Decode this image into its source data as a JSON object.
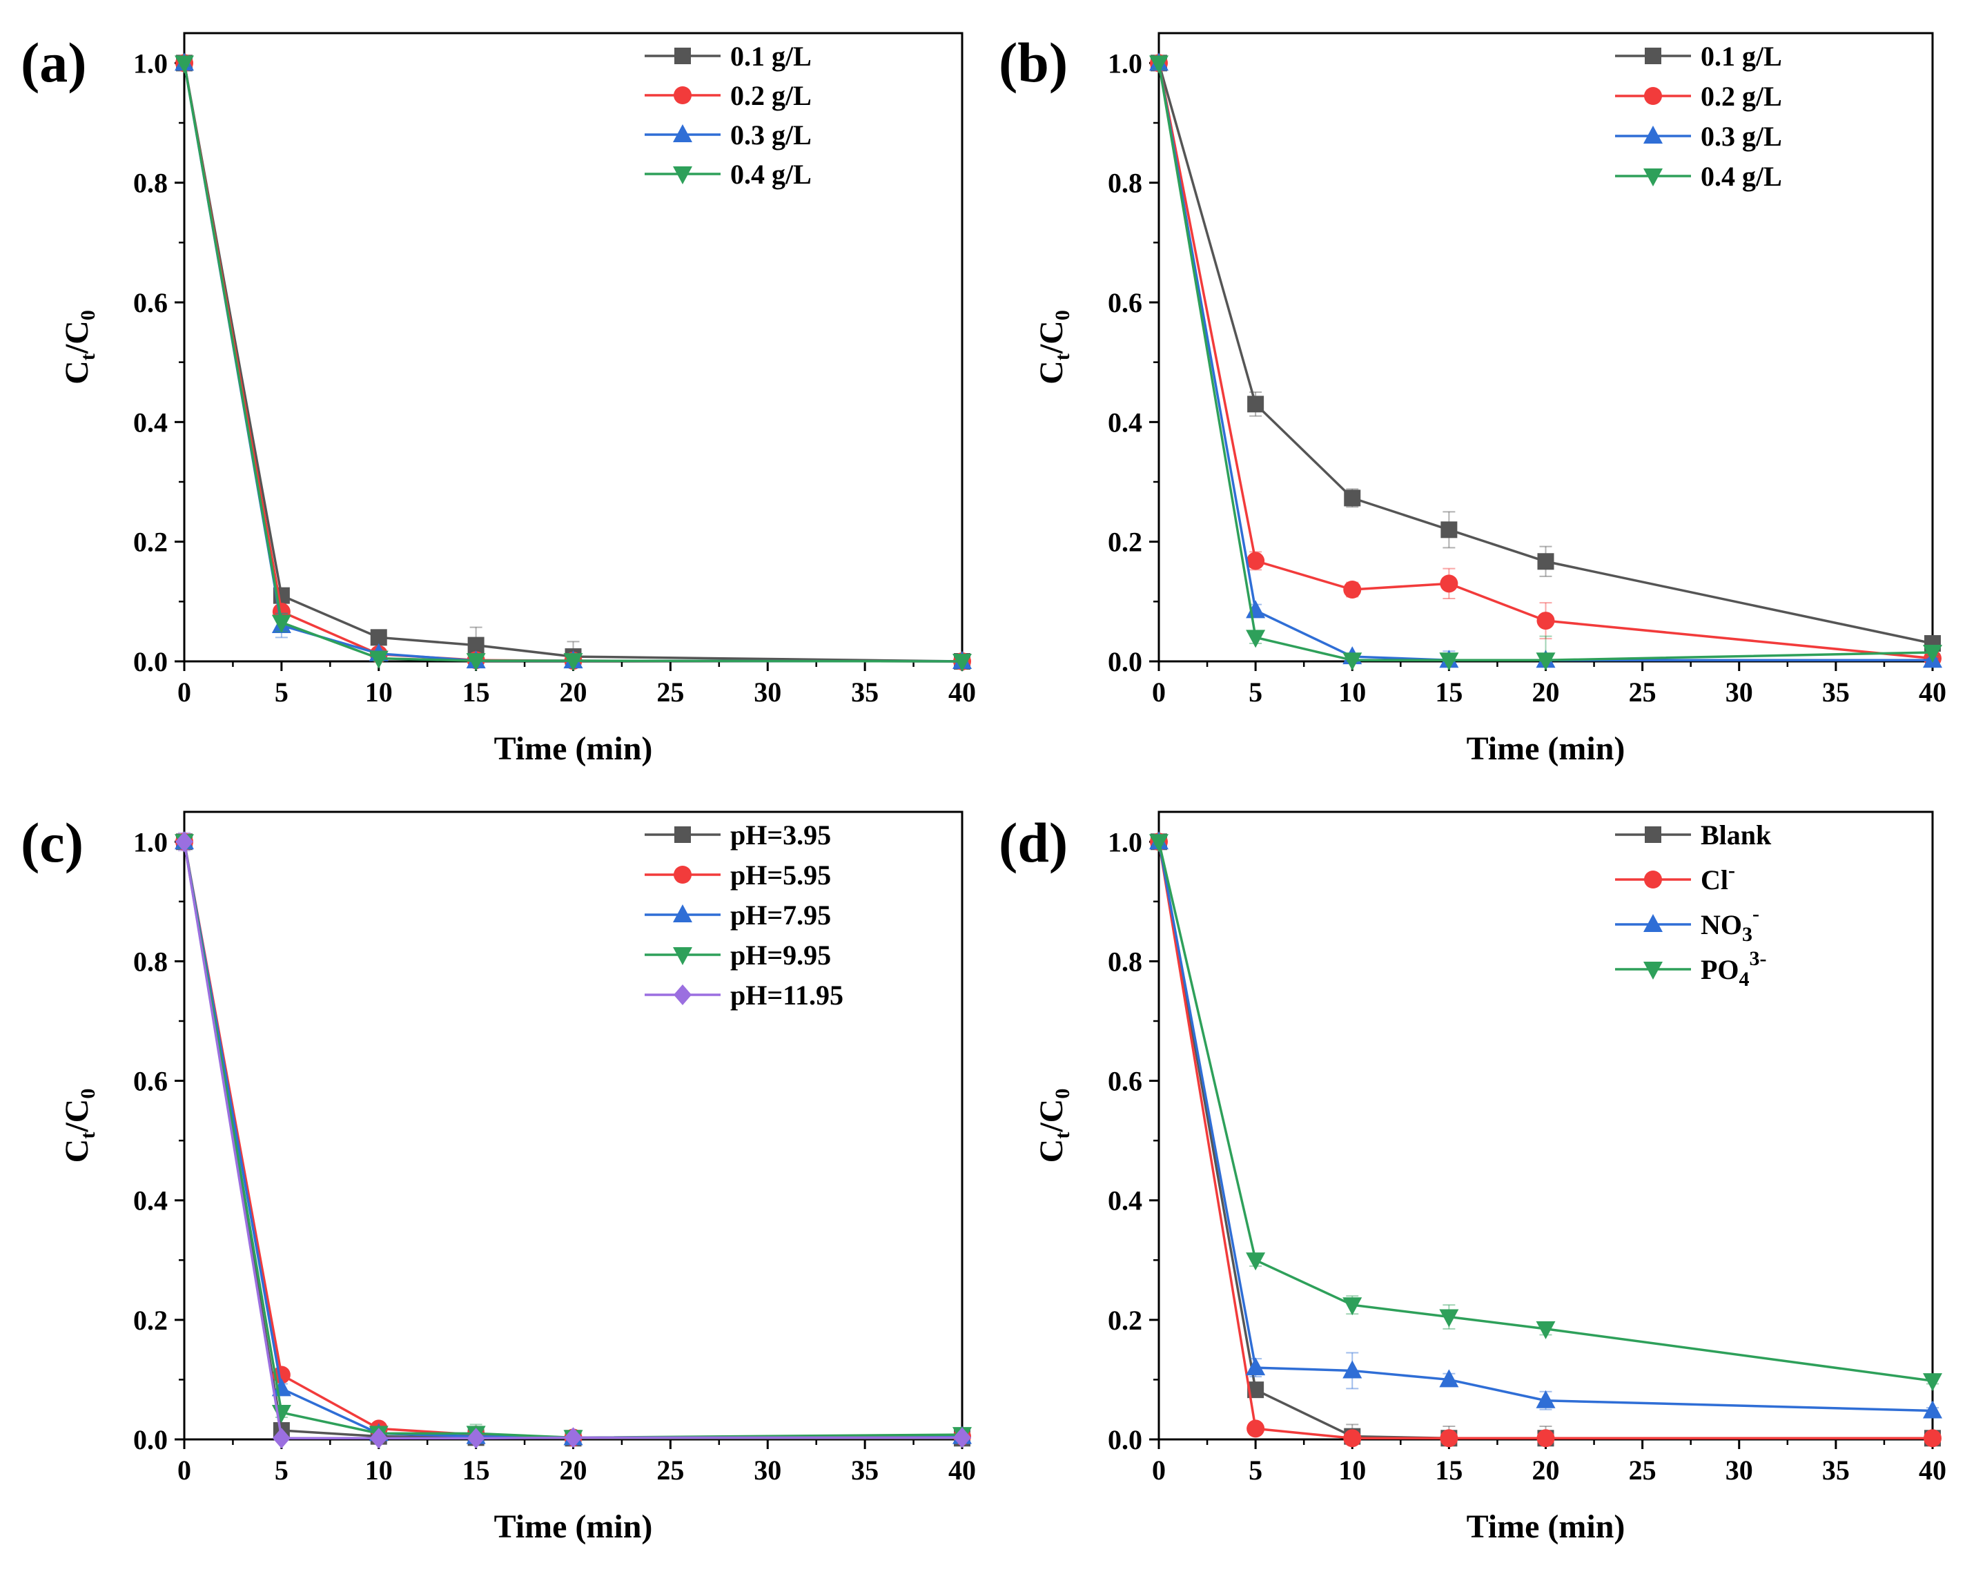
{
  "figure": {
    "panels": [
      {
        "label": "(a)",
        "chart_index": 0
      },
      {
        "label": "(b)",
        "chart_index": 1
      },
      {
        "label": "(c)",
        "chart_index": 2
      },
      {
        "label": "(d)",
        "chart_index": 3
      }
    ]
  },
  "chart_data": [
    {
      "panel": "(a)",
      "type": "line",
      "xlabel": "Time (min)",
      "ylabel": "Ct/C0",
      "ylabel_main": "C",
      "ylabel_sub1": "t",
      "ylabel_mid": "/C",
      "ylabel_sub2": "0",
      "xlim": [
        0,
        40
      ],
      "ylim": [
        0,
        1.05
      ],
      "xticks": [
        "0",
        "5",
        "10",
        "15",
        "20",
        "25",
        "30",
        "35",
        "40"
      ],
      "yticks": [
        "0.0",
        "0.2",
        "0.4",
        "0.6",
        "0.8",
        "1.0"
      ],
      "legend_position": "top-right",
      "series": [
        {
          "name": "0.1 g/L",
          "color": "#555555",
          "marker": "square",
          "x": [
            0,
            5,
            10,
            15,
            20,
            40
          ],
          "y": [
            1.0,
            0.11,
            0.04,
            0.027,
            0.008,
            0.0
          ],
          "err": [
            0.005,
            0.01,
            0.012,
            0.03,
            0.025,
            0.005
          ]
        },
        {
          "name": "0.2 g/L",
          "color": "#f23b3b",
          "marker": "circle",
          "x": [
            0,
            5,
            10,
            15,
            20,
            40
          ],
          "y": [
            1.0,
            0.083,
            0.012,
            0.002,
            0.001,
            0.0
          ],
          "err": [
            0.005,
            0.01,
            0.005,
            0.003,
            0.003,
            0.003
          ]
        },
        {
          "name": "0.3 g/L",
          "color": "#2f6ed6",
          "marker": "triangle-up",
          "x": [
            0,
            5,
            10,
            15,
            20,
            40
          ],
          "y": [
            1.0,
            0.06,
            0.013,
            0.001,
            0.001,
            0.0
          ],
          "err": [
            0.005,
            0.02,
            0.005,
            0.003,
            0.003,
            0.003
          ]
        },
        {
          "name": "0.4 g/L",
          "color": "#2ea05a",
          "marker": "triangle-down",
          "x": [
            0,
            5,
            10,
            15,
            20,
            40
          ],
          "y": [
            1.0,
            0.065,
            0.005,
            0.001,
            0.001,
            0.0
          ],
          "err": [
            0.005,
            0.015,
            0.004,
            0.003,
            0.003,
            0.003
          ]
        }
      ]
    },
    {
      "panel": "(b)",
      "type": "line",
      "xlabel": "Time (min)",
      "ylabel": "Ct/C0",
      "ylabel_main": "C",
      "ylabel_sub1": "t",
      "ylabel_mid": "/C",
      "ylabel_sub2": "0",
      "xlim": [
        0,
        40
      ],
      "ylim": [
        0,
        1.05
      ],
      "xticks": [
        "0",
        "5",
        "10",
        "15",
        "20",
        "25",
        "30",
        "35",
        "40"
      ],
      "yticks": [
        "0.0",
        "0.2",
        "0.4",
        "0.6",
        "0.8",
        "1.0"
      ],
      "legend_position": "top-right",
      "series": [
        {
          "name": "0.1 g/L",
          "color": "#555555",
          "marker": "square",
          "x": [
            0,
            5,
            10,
            15,
            20,
            40
          ],
          "y": [
            1.0,
            0.43,
            0.273,
            0.22,
            0.167,
            0.03
          ],
          "err": [
            0.01,
            0.02,
            0.015,
            0.03,
            0.025,
            0.01
          ]
        },
        {
          "name": "0.2 g/L",
          "color": "#f23b3b",
          "marker": "circle",
          "x": [
            0,
            5,
            10,
            15,
            20,
            40
          ],
          "y": [
            1.0,
            0.168,
            0.12,
            0.13,
            0.068,
            0.005
          ],
          "err": [
            0.01,
            0.015,
            0.012,
            0.025,
            0.03,
            0.005
          ]
        },
        {
          "name": "0.3 g/L",
          "color": "#2f6ed6",
          "marker": "triangle-up",
          "x": [
            0,
            5,
            10,
            15,
            20,
            40
          ],
          "y": [
            1.0,
            0.085,
            0.008,
            0.002,
            0.002,
            0.002
          ],
          "err": [
            0.01,
            0.01,
            0.005,
            0.015,
            0.005,
            0.003
          ]
        },
        {
          "name": "0.4 g/L",
          "color": "#2ea05a",
          "marker": "triangle-down",
          "x": [
            0,
            5,
            10,
            15,
            20,
            40
          ],
          "y": [
            1.0,
            0.04,
            0.002,
            0.002,
            0.002,
            0.015
          ],
          "err": [
            0.01,
            0.01,
            0.004,
            0.004,
            0.04,
            0.005
          ]
        }
      ]
    },
    {
      "panel": "(c)",
      "type": "line",
      "xlabel": "Time (min)",
      "ylabel": "Ct/C0",
      "ylabel_main": "C",
      "ylabel_sub1": "t",
      "ylabel_mid": "/C",
      "ylabel_sub2": "0",
      "xlim": [
        0,
        40
      ],
      "ylim": [
        0,
        1.05
      ],
      "xticks": [
        "0",
        "5",
        "10",
        "15",
        "20",
        "25",
        "30",
        "35",
        "40"
      ],
      "yticks": [
        "0.0",
        "0.2",
        "0.4",
        "0.6",
        "0.8",
        "1.0"
      ],
      "legend_position": "top-right",
      "series": [
        {
          "name": "pH=3.95",
          "color": "#555555",
          "marker": "square",
          "x": [
            0,
            5,
            10,
            15,
            20,
            40
          ],
          "y": [
            1.0,
            0.015,
            0.005,
            0.003,
            0.002,
            0.002
          ],
          "err": [
            0.01,
            0.005,
            0.003,
            0.003,
            0.003,
            0.003
          ]
        },
        {
          "name": "pH=5.95",
          "color": "#f23b3b",
          "marker": "circle",
          "x": [
            0,
            5,
            10,
            15,
            20,
            40
          ],
          "y": [
            1.0,
            0.108,
            0.018,
            0.008,
            0.003,
            0.005
          ],
          "err": [
            0.01,
            0.008,
            0.005,
            0.01,
            0.005,
            0.005
          ]
        },
        {
          "name": "pH=7.95",
          "color": "#2f6ed6",
          "marker": "triangle-up",
          "x": [
            0,
            5,
            10,
            15,
            20,
            40
          ],
          "y": [
            1.0,
            0.085,
            0.01,
            0.005,
            0.003,
            0.005
          ],
          "err": [
            0.01,
            0.008,
            0.005,
            0.01,
            0.005,
            0.005
          ]
        },
        {
          "name": "pH=9.95",
          "color": "#2ea05a",
          "marker": "triangle-down",
          "x": [
            0,
            5,
            10,
            15,
            20,
            40
          ],
          "y": [
            1.0,
            0.045,
            0.01,
            0.01,
            0.003,
            0.008
          ],
          "err": [
            0.01,
            0.008,
            0.005,
            0.015,
            0.005,
            0.005
          ]
        },
        {
          "name": "pH=11.95",
          "color": "#9b6fe0",
          "marker": "diamond",
          "x": [
            0,
            5,
            10,
            15,
            20,
            40
          ],
          "y": [
            1.0,
            0.002,
            0.002,
            0.002,
            0.003,
            0.003
          ],
          "err": [
            0.015,
            0.003,
            0.003,
            0.003,
            0.005,
            0.003
          ]
        }
      ]
    },
    {
      "panel": "(d)",
      "type": "line",
      "xlabel": "Time (min)",
      "ylabel": "Ct/C0",
      "ylabel_main": "C",
      "ylabel_sub1": "t",
      "ylabel_mid": "/C",
      "ylabel_sub2": "0",
      "xlim": [
        0,
        40
      ],
      "ylim": [
        0,
        1.05
      ],
      "xticks": [
        "0",
        "5",
        "10",
        "15",
        "20",
        "25",
        "30",
        "35",
        "40"
      ],
      "yticks": [
        "0.0",
        "0.2",
        "0.4",
        "0.6",
        "0.8",
        "1.0"
      ],
      "legend_position": "top-right",
      "series": [
        {
          "name": "Blank",
          "name_main": "Blank",
          "name_sub": "",
          "name_sup": "",
          "color": "#555555",
          "marker": "square",
          "x": [
            0,
            5,
            10,
            15,
            20,
            40
          ],
          "y": [
            1.0,
            0.083,
            0.005,
            0.002,
            0.002,
            0.002
          ],
          "err": [
            0.005,
            0.01,
            0.02,
            0.02,
            0.02,
            0.003
          ]
        },
        {
          "name": "Cl-",
          "name_main": "Cl",
          "name_sub": "",
          "name_sup": "-",
          "color": "#f23b3b",
          "marker": "circle",
          "x": [
            0,
            5,
            10,
            15,
            20,
            40
          ],
          "y": [
            1.0,
            0.018,
            0.002,
            0.002,
            0.002,
            0.002
          ],
          "err": [
            0.005,
            0.005,
            0.003,
            0.003,
            0.003,
            0.003
          ]
        },
        {
          "name": "NO3-",
          "name_main": "NO",
          "name_sub": "3",
          "name_sup": "-",
          "color": "#2f6ed6",
          "marker": "triangle-up",
          "x": [
            0,
            5,
            10,
            15,
            20,
            40
          ],
          "y": [
            1.0,
            0.12,
            0.115,
            0.1,
            0.065,
            0.048
          ],
          "err": [
            0.005,
            0.015,
            0.03,
            0.01,
            0.015,
            0.005
          ]
        },
        {
          "name": "PO43-",
          "name_main": "PO",
          "name_sub": "4",
          "name_sup": "3-",
          "color": "#2ea05a",
          "marker": "triangle-down",
          "x": [
            0,
            5,
            10,
            15,
            20,
            40
          ],
          "y": [
            1.0,
            0.3,
            0.225,
            0.205,
            0.185,
            0.098
          ],
          "err": [
            0.005,
            0.01,
            0.015,
            0.02,
            0.01,
            0.005
          ]
        }
      ]
    }
  ]
}
